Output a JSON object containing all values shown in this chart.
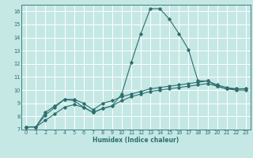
{
  "xlabel": "Humidex (Indice chaleur)",
  "bg_color": "#c5e8e5",
  "grid_color": "#ffffff",
  "line_color": "#2d6e6e",
  "xlim": [
    -0.5,
    23.5
  ],
  "ylim": [
    7,
    16.5
  ],
  "xticks": [
    0,
    1,
    2,
    3,
    4,
    5,
    6,
    7,
    8,
    9,
    10,
    11,
    12,
    13,
    14,
    15,
    16,
    17,
    18,
    19,
    20,
    21,
    22,
    23
  ],
  "yticks": [
    7,
    8,
    9,
    10,
    11,
    12,
    13,
    14,
    15,
    16
  ],
  "curve1_x": [
    0,
    1,
    2,
    3,
    4,
    5,
    6,
    7,
    8,
    9,
    10,
    11,
    12,
    13,
    14,
    15,
    16,
    17,
    18,
    19,
    20,
    21,
    22,
    23
  ],
  "curve1_y": [
    7.2,
    7.2,
    8.3,
    8.8,
    9.3,
    9.2,
    8.7,
    8.3,
    8.6,
    8.8,
    9.7,
    12.1,
    14.3,
    16.2,
    16.2,
    15.4,
    14.3,
    13.1,
    10.7,
    10.7,
    10.3,
    10.1,
    10.1,
    10.1
  ],
  "curve2_x": [
    0,
    1,
    2,
    3,
    4,
    5,
    6,
    7,
    8,
    9,
    10,
    11,
    12,
    13,
    14,
    15,
    16,
    17,
    18,
    19,
    20,
    21,
    22,
    23
  ],
  "curve2_y": [
    7.2,
    7.2,
    8.1,
    8.7,
    9.3,
    9.3,
    9.0,
    8.5,
    9.0,
    9.2,
    9.5,
    9.7,
    9.9,
    10.1,
    10.2,
    10.3,
    10.4,
    10.5,
    10.6,
    10.7,
    10.4,
    10.2,
    10.1,
    10.1
  ],
  "curve3_x": [
    0,
    1,
    2,
    3,
    4,
    5,
    6,
    7,
    8,
    9,
    10,
    11,
    12,
    13,
    14,
    15,
    16,
    17,
    18,
    19,
    20,
    21,
    22,
    23
  ],
  "curve3_y": [
    7.2,
    7.2,
    7.7,
    8.2,
    8.7,
    8.9,
    8.7,
    8.3,
    8.6,
    8.8,
    9.2,
    9.5,
    9.7,
    9.9,
    10.0,
    10.1,
    10.2,
    10.3,
    10.4,
    10.5,
    10.3,
    10.1,
    10.0,
    10.0
  ],
  "xlabel_fontsize": 5.5,
  "tick_fontsize": 4.8,
  "linewidth": 0.8,
  "markersize": 1.8
}
